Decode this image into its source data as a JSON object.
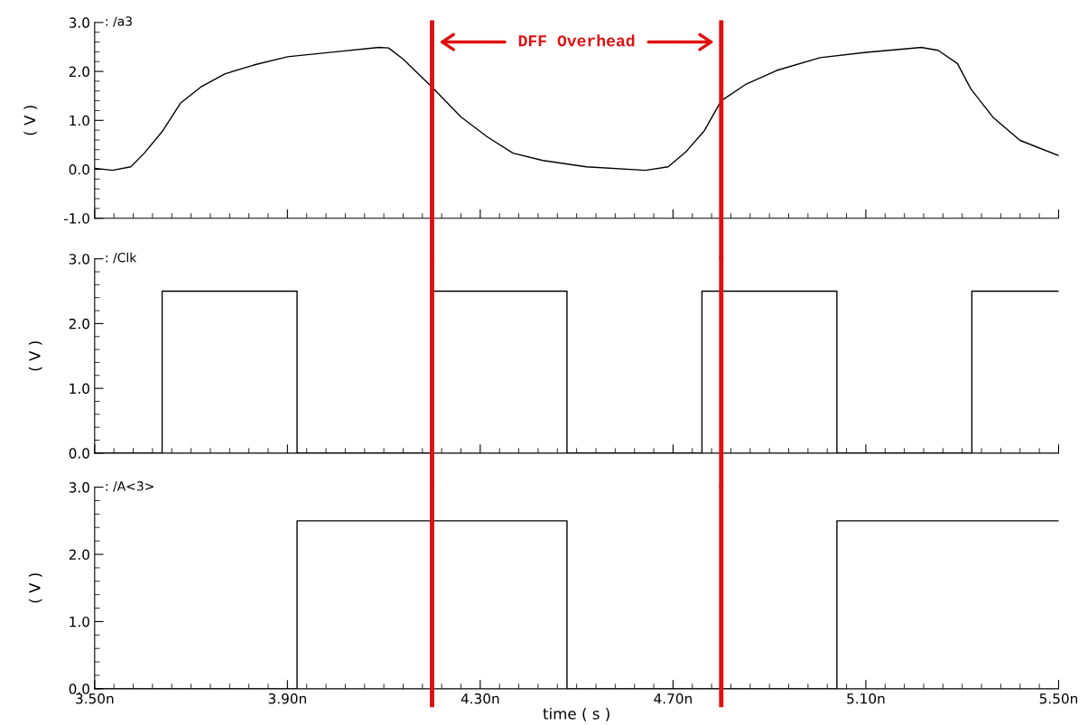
{
  "chart_data": [
    {
      "type": "line",
      "ylabel": "( V )",
      "xlim": [
        3.5,
        5.5
      ],
      "ylim": [
        -1,
        3
      ],
      "xticks": [
        {
          "value": 3.5,
          "label": null
        },
        {
          "value": 3.9,
          "label": null
        },
        {
          "value": 4.3,
          "label": null
        },
        {
          "value": 4.7,
          "label": null
        },
        {
          "value": 5.1,
          "label": null
        },
        {
          "value": 5.5,
          "label": null
        }
      ],
      "yticks": [
        {
          "value": -1,
          "label": "-1.0"
        },
        {
          "value": 0,
          "label": "0.0"
        },
        {
          "value": 1,
          "label": "1.0"
        },
        {
          "value": 2,
          "label": "2.0"
        },
        {
          "value": 3,
          "label": "3.0"
        }
      ],
      "tick_labels": "y",
      "legend": "top left",
      "grid": false,
      "series": [
        {
          "name": ": /a3",
          "color": "#000000",
          "x": [
            3.5,
            3.537,
            3.575,
            3.603,
            3.64,
            3.678,
            3.72,
            3.77,
            3.83,
            3.9,
            4.0,
            4.09,
            4.11,
            4.14,
            4.2,
            4.26,
            4.315,
            4.368,
            4.43,
            4.52,
            4.643,
            4.69,
            4.728,
            4.765,
            4.8,
            4.85,
            4.915,
            5.005,
            5.1,
            5.215,
            5.25,
            5.29,
            5.318,
            5.365,
            5.42,
            5.5
          ],
          "values": [
            0.02,
            -0.02,
            0.05,
            0.33,
            0.77,
            1.35,
            1.68,
            1.95,
            2.13,
            2.3,
            2.4,
            2.49,
            2.48,
            2.25,
            1.68,
            1.07,
            0.66,
            0.33,
            0.18,
            0.05,
            -0.02,
            0.05,
            0.37,
            0.79,
            1.4,
            1.73,
            2.02,
            2.28,
            2.39,
            2.49,
            2.43,
            2.16,
            1.64,
            1.05,
            0.59,
            0.28
          ]
        }
      ],
      "ref_lines": [
        {
          "axis": "x",
          "value": 4.2,
          "color": "#e01010"
        },
        {
          "axis": "x",
          "value": 4.8,
          "color": "#e01010"
        }
      ],
      "annotations": [
        "DFF Overhead"
      ]
    },
    {
      "type": "step",
      "ylabel": "( V )",
      "xlim": [
        3.5,
        5.5
      ],
      "ylim": [
        0,
        3
      ],
      "xticks": [
        {
          "value": 3.5,
          "label": null
        },
        {
          "value": 3.9,
          "label": null
        },
        {
          "value": 4.3,
          "label": null
        },
        {
          "value": 4.7,
          "label": null
        },
        {
          "value": 5.1,
          "label": null
        },
        {
          "value": 5.5,
          "label": null
        }
      ],
      "yticks": [
        {
          "value": 0,
          "label": "0.0"
        },
        {
          "value": 1,
          "label": "1.0"
        },
        {
          "value": 2,
          "label": "2.0"
        },
        {
          "value": 3,
          "label": "3.0"
        }
      ],
      "tick_labels": "y",
      "legend": "top left",
      "grid": false,
      "series": [
        {
          "name": ": /Clk",
          "color": "#000000",
          "x": [
            3.5,
            3.64,
            3.92,
            4.2,
            4.48,
            4.76,
            5.04,
            5.32,
            5.5
          ],
          "values": [
            0,
            2.5,
            0,
            2.5,
            0,
            2.5,
            0,
            2.5,
            2.5
          ]
        }
      ],
      "ref_lines": [
        {
          "axis": "x",
          "value": 4.2,
          "color": "#e01010"
        },
        {
          "axis": "x",
          "value": 4.8,
          "color": "#e01010"
        }
      ]
    },
    {
      "type": "step",
      "xlabel": "time ( s )",
      "ylabel": "( V )",
      "xlim": [
        3.5,
        5.5
      ],
      "ylim": [
        0,
        3
      ],
      "xticks": [
        {
          "value": 3.5,
          "label": "3.50n"
        },
        {
          "value": 3.9,
          "label": "3.90n"
        },
        {
          "value": 4.3,
          "label": "4.30n"
        },
        {
          "value": 4.7,
          "label": "4.70n"
        },
        {
          "value": 5.1,
          "label": "5.10n"
        },
        {
          "value": 5.5,
          "label": "5.50n"
        }
      ],
      "yticks": [
        {
          "value": 0,
          "label": "0.0"
        },
        {
          "value": 1,
          "label": "1.0"
        },
        {
          "value": 2,
          "label": "2.0"
        },
        {
          "value": 3,
          "label": "3.0"
        }
      ],
      "legend": "top left",
      "grid": false,
      "series": [
        {
          "name": ": /A<3>",
          "color": "#000000",
          "x": [
            3.5,
            3.92,
            4.48,
            5.04,
            5.5
          ],
          "values": [
            0,
            2.5,
            0,
            2.5,
            2.5
          ]
        }
      ],
      "ref_lines": [
        {
          "axis": "x",
          "value": 4.2,
          "color": "#e01010"
        },
        {
          "axis": "x",
          "value": 4.8,
          "color": "#e01010"
        }
      ]
    }
  ]
}
